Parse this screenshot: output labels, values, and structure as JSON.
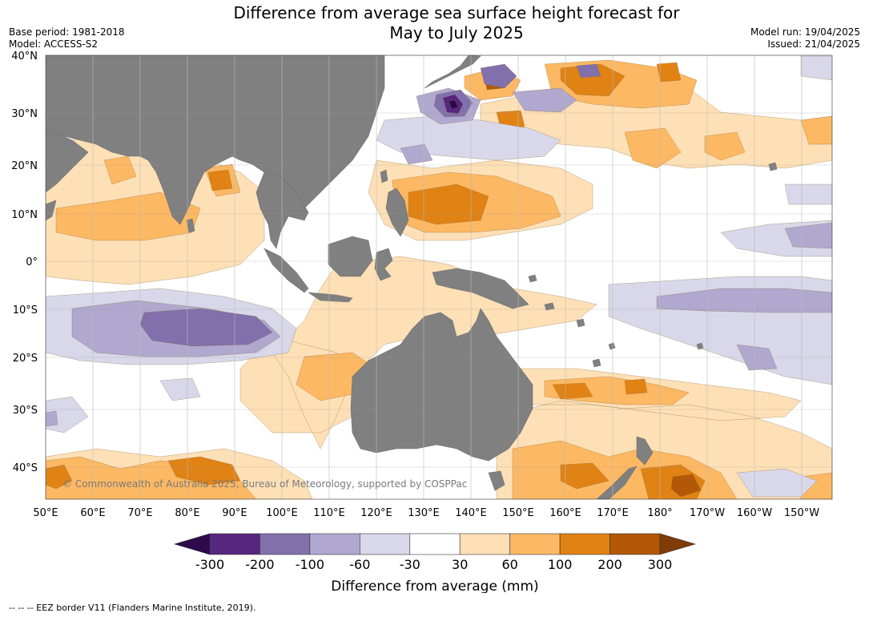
{
  "header": {
    "title_line1": "Difference from average sea surface height forecast for",
    "title_line2": "May to July 2025",
    "base_period": "Base period: 1981-2018",
    "model": "Model: ACCESS-S2",
    "model_run": "Model run: 19/04/2025",
    "issued": "Issued: 21/04/2025"
  },
  "map": {
    "lat_labels": [
      "40°N",
      "30°N",
      "20°N",
      "10°N",
      "0°",
      "10°S",
      "20°S",
      "30°S",
      "40°S"
    ],
    "lon_labels": [
      "50°E",
      "60°E",
      "70°E",
      "80°E",
      "90°E",
      "100°E",
      "110°E",
      "120°E",
      "130°E",
      "140°E",
      "150°E",
      "160°E",
      "170°E",
      "180°",
      "170°W",
      "160°W",
      "150°W"
    ],
    "credit": "© Commonwealth of Australia 2025, Bureau of Meteorology, supported by COSPPac",
    "colors": {
      "land": "#808080",
      "ocean": "#ffffff",
      "grid": "#999999"
    }
  },
  "colorbar": {
    "title": "Difference from average (mm)",
    "tick_labels": [
      "-300",
      "-200",
      "-100",
      "-60",
      "-30",
      "30",
      "60",
      "100",
      "200",
      "300"
    ],
    "colors": [
      "#2d0a4b",
      "#57267f",
      "#8170ab",
      "#b0a8cf",
      "#d8d8ea",
      "#ffffff",
      "#fee0b6",
      "#fdb863",
      "#e08214",
      "#b35806",
      "#7f3b08"
    ]
  },
  "footer": {
    "note": "--  --  -- EEZ border V11 (Flanders Marine Institute, 2019)."
  }
}
